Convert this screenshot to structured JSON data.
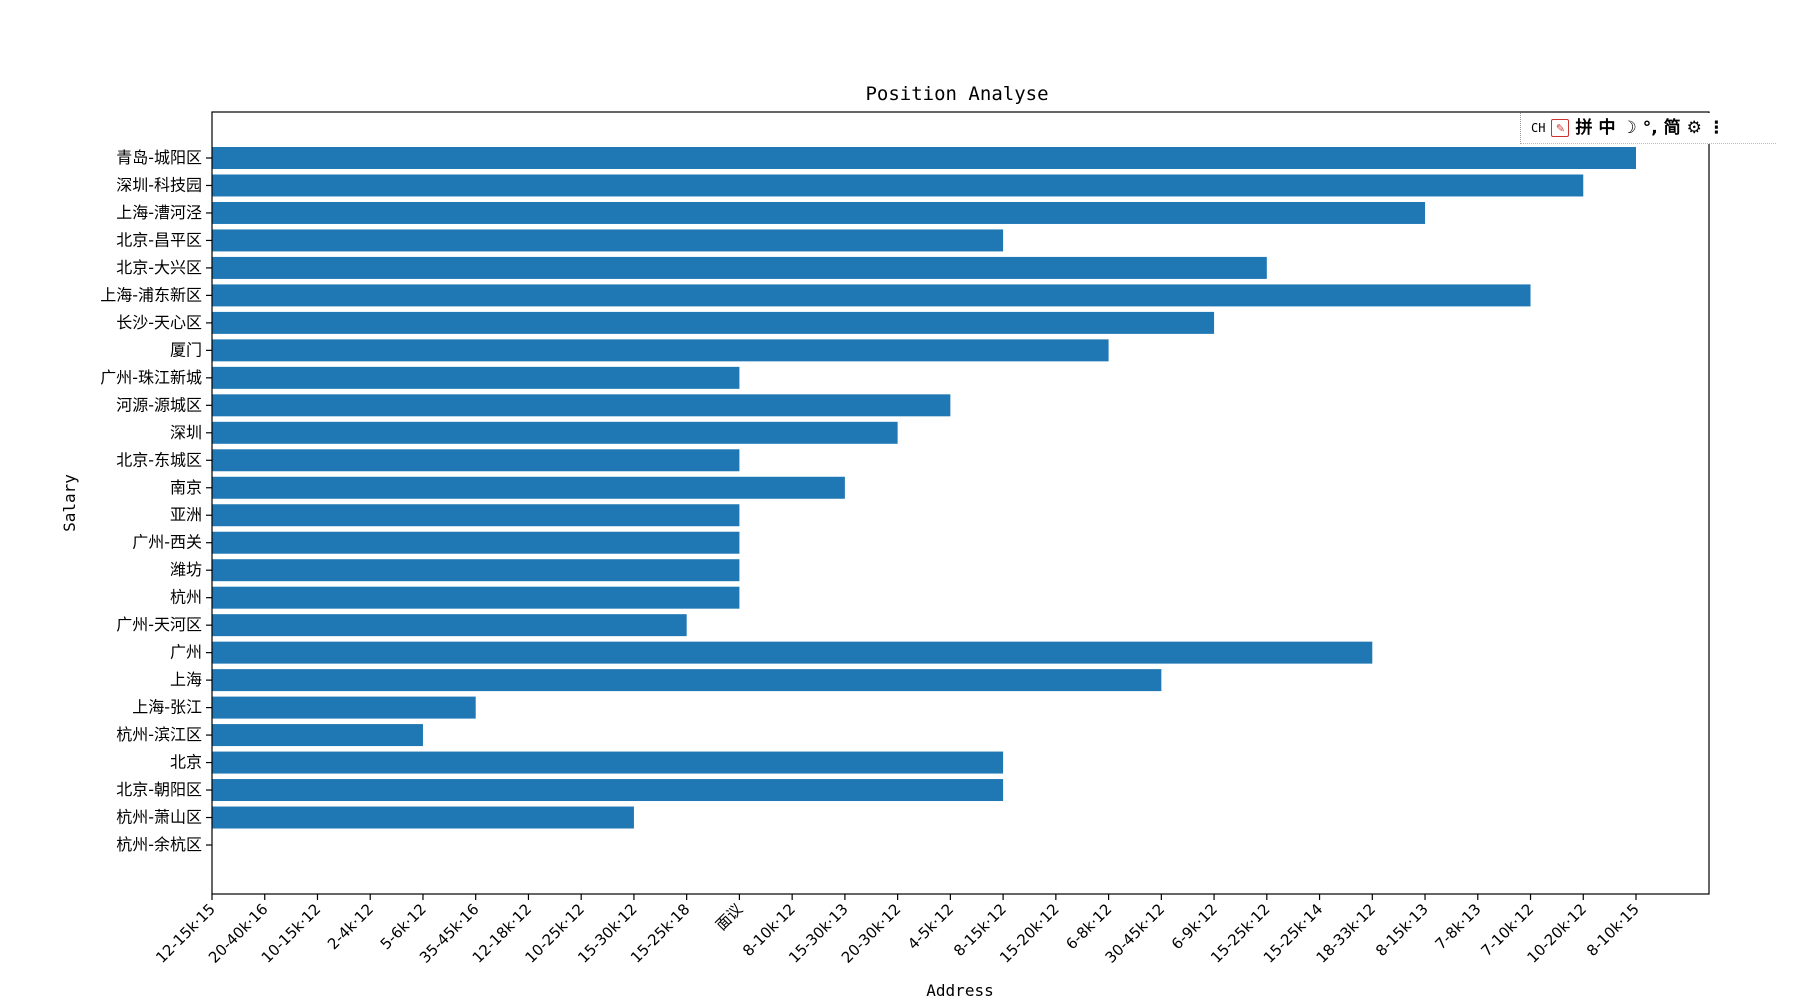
{
  "chart_data": {
    "type": "bar",
    "orientation": "horizontal",
    "title": "Position Analyse",
    "xlabel": "Address",
    "ylabel": "Salary",
    "categories": [
      "青岛-城阳区",
      "深圳-科技园",
      "上海-漕河泾",
      "北京-昌平区",
      "北京-大兴区",
      "上海-浦东新区",
      "长沙-天心区",
      "厦门",
      "广州-珠江新城",
      "河源-源城区",
      "深圳",
      "北京-东城区",
      "南京",
      "亚洲",
      "广州-西关",
      "潍坊",
      "杭州",
      "广州-天河区",
      "广州",
      "上海",
      "上海-张江",
      "杭州-滨江区",
      "北京",
      "北京-朝阳区",
      "杭州-萧山区",
      "杭州-余杭区"
    ],
    "x_ticks": [
      "12-15k·15",
      "20-40k·16",
      "10-15k·12",
      "2-4k·12",
      "5-6k·12",
      "35-45k·16",
      "12-18k·12",
      "10-25k·12",
      "15-30k·12",
      "15-25k·18",
      "面议",
      "8-10k·12",
      "15-30k·13",
      "20-30k·12",
      "4-5k·12",
      "8-15k·12",
      "15-20k·12",
      "6-8k·12",
      "30-45k·12",
      "6-9k·12",
      "15-25k·12",
      "15-25k·14",
      "18-33k·12",
      "8-15k·13",
      "7-8k·13",
      "7-10k·12",
      "10-20k·12",
      "8-10k·15"
    ],
    "values": [
      "8-10k·15",
      "10-20k·12",
      "8-15k·13",
      "8-15k·12",
      "15-25k·12",
      "7-10k·12",
      "6-9k·12",
      "6-8k·12",
      "面议",
      "4-5k·12",
      "20-30k·12",
      "面议",
      "15-30k·13",
      "面议",
      "面议",
      "面议",
      "面议",
      "15-25k·18",
      "18-33k·12",
      "30-45k·12",
      "35-45k·16",
      "5-6k·12",
      "8-15k·12",
      "8-15k·12",
      "15-30k·12",
      "12-15k·15"
    ],
    "grid": false,
    "bar_color": "#1f77b4"
  },
  "ime_toolbar": {
    "items": [
      "CH",
      "拼",
      "中",
      "简"
    ],
    "icons": [
      "document-icon",
      "moon-icon",
      "punctuation-icon",
      "gear-icon",
      "more-icon"
    ]
  }
}
